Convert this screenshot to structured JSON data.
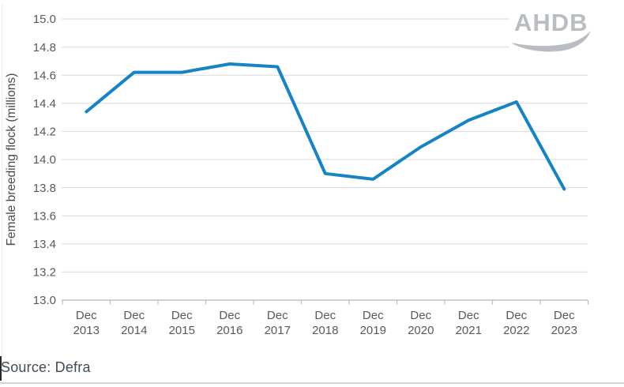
{
  "chart_data": {
    "type": "line",
    "title": "",
    "xlabel": "",
    "ylabel": "Female breeding flock (millions)",
    "categories": [
      "Dec 2013",
      "Dec 2014",
      "Dec 2015",
      "Dec 2016",
      "Dec 2017",
      "Dec 2018",
      "Dec 2019",
      "Dec 2020",
      "Dec 2021",
      "Dec 2022",
      "Dec 2023"
    ],
    "series": [
      {
        "name": "Female breeding flock",
        "values": [
          14.34,
          14.62,
          14.62,
          14.68,
          14.66,
          13.9,
          13.86,
          14.09,
          14.28,
          14.41,
          13.79
        ],
        "color": "#1583c5"
      }
    ],
    "ylim": [
      13.0,
      15.0
    ],
    "ytick_step": 0.2,
    "ytick_labels": [
      "15.0",
      "14.8",
      "14.6",
      "14.4",
      "14.2",
      "14.0",
      "13.8",
      "13.6",
      "13.4",
      "13.2",
      "13.0"
    ],
    "grid": "horizontal",
    "legend": "none",
    "line_width": 4
  },
  "watermark": {
    "text": "AHDB"
  },
  "footer": {
    "source": "Source: Defra"
  },
  "colors": {
    "line": "#1583c5",
    "gridline": "#d9d9d9",
    "axis": "#c0c0c0",
    "tick_label": "#595959",
    "axis_title": "#4a4a4a",
    "watermark": "#b9bdc1",
    "source_text": "#3f4c58"
  }
}
